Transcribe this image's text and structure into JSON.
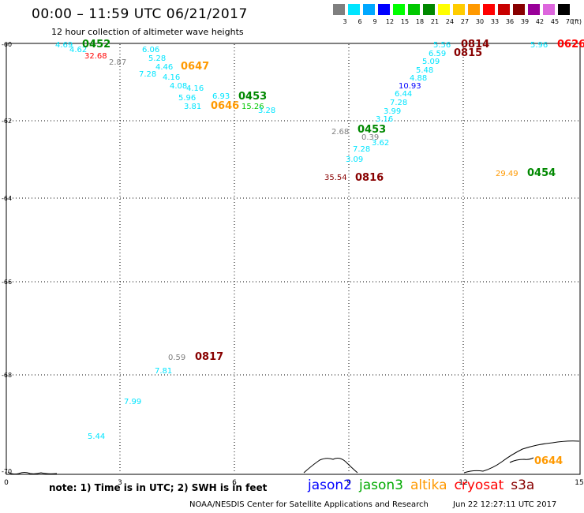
{
  "title": "00:00 – 11:59 UTC 06/21/2017",
  "subtitle": "12 hour collection of altimeter wave heights",
  "color_scale": {
    "unit": "(ft)",
    "bins": [
      {
        "label": "3",
        "color": "#7f7f7f"
      },
      {
        "label": "6",
        "color": "#00e5ff"
      },
      {
        "label": "9",
        "color": "#00a8ff"
      },
      {
        "label": "12",
        "color": "#0000ff"
      },
      {
        "label": "15",
        "color": "#00ff00"
      },
      {
        "label": "18",
        "color": "#00c800"
      },
      {
        "label": "21",
        "color": "#008800"
      },
      {
        "label": "24",
        "color": "#ffff00"
      },
      {
        "label": "27",
        "color": "#ffcc00"
      },
      {
        "label": "30",
        "color": "#ff9900"
      },
      {
        "label": "33",
        "color": "#ff0000"
      },
      {
        "label": "36",
        "color": "#c80000"
      },
      {
        "label": "39",
        "color": "#880000"
      },
      {
        "label": "42",
        "color": "#990099"
      },
      {
        "label": "45",
        "color": "#dd66dd"
      },
      {
        "label": "70",
        "color": "#000000"
      }
    ]
  },
  "axes": {
    "x_ticks": [
      "0",
      "3",
      "6",
      "9",
      "12",
      "15"
    ],
    "y_ticks": [
      "-60",
      "-62",
      "-64",
      "-66",
      "-68",
      "-70"
    ]
  },
  "observations": [
    {
      "label": "4.69",
      "color": "#00e5ff"
    },
    {
      "label": "4.62",
      "color": "#00e5ff"
    },
    {
      "label": "0452",
      "color": "#008800",
      "kind": "time"
    },
    {
      "label": "32.68",
      "color": "#ff0000"
    },
    {
      "label": "2.87",
      "color": "#7f7f7f"
    },
    {
      "label": "6.06",
      "color": "#00e5ff"
    },
    {
      "label": "5.28",
      "color": "#00e5ff"
    },
    {
      "label": "4.46",
      "color": "#00e5ff"
    },
    {
      "label": "7.28",
      "color": "#00e5ff"
    },
    {
      "label": "0647",
      "color": "#ff9900",
      "kind": "time"
    },
    {
      "label": "4.16",
      "color": "#00e5ff"
    },
    {
      "label": "4.08",
      "color": "#00e5ff"
    },
    {
      "label": "4.16",
      "color": "#00e5ff"
    },
    {
      "label": "5.96",
      "color": "#00e5ff"
    },
    {
      "label": "3.81",
      "color": "#00e5ff"
    },
    {
      "label": "6.93",
      "color": "#00e5ff"
    },
    {
      "label": "0646",
      "color": "#ff9900",
      "kind": "time"
    },
    {
      "label": "15.26",
      "color": "#00c800"
    },
    {
      "label": "0453",
      "color": "#008800",
      "kind": "time"
    },
    {
      "label": "3.28",
      "color": "#00e5ff"
    },
    {
      "label": "5.56",
      "color": "#00e5ff"
    },
    {
      "label": "0814",
      "color": "#880000",
      "kind": "time"
    },
    {
      "label": "6.59",
      "color": "#00e5ff"
    },
    {
      "label": "0815",
      "color": "#880000",
      "kind": "time"
    },
    {
      "label": "5.09",
      "color": "#00e5ff"
    },
    {
      "label": "5.48",
      "color": "#00e5ff"
    },
    {
      "label": "4.88",
      "color": "#00e5ff"
    },
    {
      "label": "10.93",
      "color": "#0000ff"
    },
    {
      "label": "6.44",
      "color": "#00e5ff"
    },
    {
      "label": "7.28",
      "color": "#00e5ff"
    },
    {
      "label": "3.99",
      "color": "#00e5ff"
    },
    {
      "label": "3.16",
      "color": "#00e5ff"
    },
    {
      "label": "2.68",
      "color": "#7f7f7f"
    },
    {
      "label": "0453",
      "color": "#008800",
      "kind": "time"
    },
    {
      "label": "0.39",
      "color": "#7f7f7f"
    },
    {
      "label": "3.62",
      "color": "#00e5ff"
    },
    {
      "label": "7.28",
      "color": "#00e5ff"
    },
    {
      "label": "3.09",
      "color": "#00e5ff"
    },
    {
      "label": "5.96",
      "color": "#00e5ff"
    },
    {
      "label": "0626",
      "color": "#ff0000",
      "kind": "time"
    },
    {
      "label": "35.54",
      "color": "#880000"
    },
    {
      "label": "0816",
      "color": "#880000",
      "kind": "time"
    },
    {
      "label": "29.49",
      "color": "#ff9900"
    },
    {
      "label": "0454",
      "color": "#008800",
      "kind": "time"
    },
    {
      "label": "0.59",
      "color": "#7f7f7f"
    },
    {
      "label": "0817",
      "color": "#880000",
      "kind": "time"
    },
    {
      "label": "7.81",
      "color": "#00e5ff"
    },
    {
      "label": "7.99",
      "color": "#00e5ff"
    },
    {
      "label": "5.44",
      "color": "#00e5ff"
    },
    {
      "label": "0644",
      "color": "#ff9900",
      "kind": "time"
    }
  ],
  "footer": {
    "note": "note: 1) Time is in UTC; 2) SWH is in feet",
    "legend": [
      {
        "label": "jason2",
        "color": "#0000ff"
      },
      {
        "label": "jason3",
        "color": "#00aa00"
      },
      {
        "label": "altika",
        "color": "#ff9900"
      },
      {
        "label": "cryosat",
        "color": "#ff0000"
      },
      {
        "label": "s3a",
        "color": "#880000"
      }
    ],
    "credit": "NOAA/NESDIS Center for Satellite Applications and Research",
    "timestamp": "Jun 22 12:27:11 UTC 2017"
  }
}
